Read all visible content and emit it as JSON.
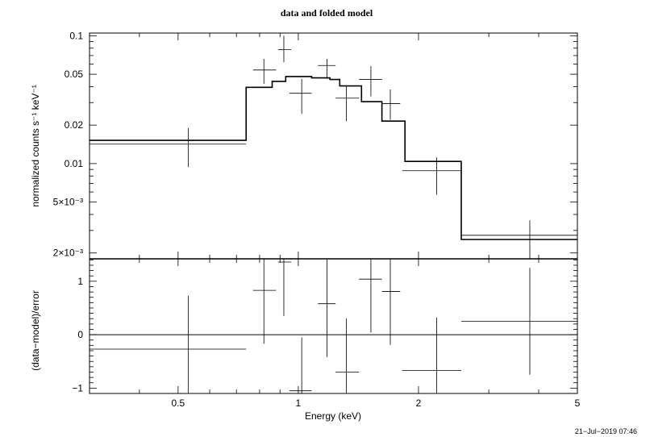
{
  "chart_data": [
    {
      "type": "line",
      "title": "data and folded model",
      "xlabel": "",
      "ylabel": "normalized counts s⁻¹ keV⁻¹",
      "x_scale": "log",
      "y_scale": "log",
      "xlim": [
        0.3,
        5
      ],
      "ylim": [
        0.0018,
        0.105
      ],
      "y_tick_labels": [
        "0.1",
        "0.05",
        "0.02",
        "0.01",
        "5×10⁻³",
        "2×10⁻³"
      ],
      "y_tick_values": [
        0.1,
        0.05,
        0.02,
        0.01,
        0.005,
        0.002
      ],
      "series": [
        {
          "kind": "data",
          "points": [
            {
              "x": 0.53,
              "xlo": 0.3,
              "xhi": 0.74,
              "y": 0.0142,
              "ylo": 0.0094,
              "yhi": 0.019
            },
            {
              "x": 0.82,
              "xlo": 0.77,
              "xhi": 0.88,
              "y": 0.054,
              "ylo": 0.042,
              "yhi": 0.066
            },
            {
              "x": 0.92,
              "xlo": 0.89,
              "xhi": 0.96,
              "y": 0.078,
              "ylo": 0.062,
              "yhi": 0.1
            },
            {
              "x": 1.02,
              "xlo": 0.95,
              "xhi": 1.08,
              "y": 0.0355,
              "ylo": 0.0245,
              "yhi": 0.046
            },
            {
              "x": 1.18,
              "xlo": 1.12,
              "xhi": 1.24,
              "y": 0.0585,
              "ylo": 0.046,
              "yhi": 0.066
            },
            {
              "x": 1.32,
              "xlo": 1.24,
              "xhi": 1.42,
              "y": 0.0325,
              "ylo": 0.0215,
              "yhi": 0.041
            },
            {
              "x": 1.52,
              "xlo": 1.42,
              "xhi": 1.62,
              "y": 0.0455,
              "ylo": 0.0335,
              "yhi": 0.058
            },
            {
              "x": 1.7,
              "xlo": 1.62,
              "xhi": 1.8,
              "y": 0.0295,
              "ylo": 0.022,
              "yhi": 0.038
            },
            {
              "x": 2.22,
              "xlo": 1.82,
              "xhi": 2.56,
              "y": 0.0088,
              "ylo": 0.0057,
              "yhi": 0.0112
            },
            {
              "x": 3.8,
              "xlo": 2.56,
              "xhi": 5.0,
              "y": 0.00275,
              "ylo": 0.0018,
              "yhi": 0.0036
            }
          ]
        },
        {
          "kind": "model",
          "steps": [
            {
              "xlo": 0.3,
              "xhi": 0.74,
              "y": 0.0152
            },
            {
              "xlo": 0.74,
              "xhi": 0.86,
              "y": 0.0395
            },
            {
              "xlo": 0.86,
              "xhi": 0.93,
              "y": 0.044
            },
            {
              "xlo": 0.93,
              "xhi": 1.08,
              "y": 0.048
            },
            {
              "xlo": 1.08,
              "xhi": 1.2,
              "y": 0.0468
            },
            {
              "xlo": 1.2,
              "xhi": 1.27,
              "y": 0.0455
            },
            {
              "xlo": 1.27,
              "xhi": 1.44,
              "y": 0.0405
            },
            {
              "xlo": 1.44,
              "xhi": 1.62,
              "y": 0.0305
            },
            {
              "xlo": 1.62,
              "xhi": 1.85,
              "y": 0.0215
            },
            {
              "xlo": 1.85,
              "xhi": 2.56,
              "y": 0.0104
            },
            {
              "xlo": 2.56,
              "xhi": 5.0,
              "y": 0.00255
            }
          ]
        }
      ]
    },
    {
      "type": "scatter",
      "title": "",
      "xlabel": "Energy (keV)",
      "ylabel": "(data−model)/error",
      "x_scale": "log",
      "y_scale": "linear",
      "xlim": [
        0.3,
        5
      ],
      "ylim": [
        -1.1,
        1.42
      ],
      "x_tick_labels": [
        "0.5",
        "1",
        "2",
        "5"
      ],
      "x_tick_values": [
        0.5,
        1,
        2,
        5
      ],
      "y_tick_labels": [
        "1",
        "0",
        "−1"
      ],
      "y_tick_values": [
        1,
        0,
        -1
      ],
      "zero_line": 0,
      "points": [
        {
          "x": 0.53,
          "xlo": 0.3,
          "xhi": 0.74,
          "y": -0.27,
          "ylo": -1.25,
          "yhi": 0.73
        },
        {
          "x": 0.82,
          "xlo": 0.77,
          "xhi": 0.88,
          "y": 0.83,
          "ylo": -0.17,
          "yhi": 1.83
        },
        {
          "x": 0.92,
          "xlo": 0.89,
          "xhi": 0.96,
          "y": 1.36,
          "ylo": 0.35,
          "yhi": 2.36
        },
        {
          "x": 1.02,
          "xlo": 0.95,
          "xhi": 1.08,
          "y": -1.05,
          "ylo": -2.05,
          "yhi": -0.05
        },
        {
          "x": 1.18,
          "xlo": 1.12,
          "xhi": 1.24,
          "y": 0.58,
          "ylo": -0.42,
          "yhi": 1.58
        },
        {
          "x": 1.32,
          "xlo": 1.24,
          "xhi": 1.42,
          "y": -0.7,
          "ylo": -1.7,
          "yhi": 0.3
        },
        {
          "x": 1.52,
          "xlo": 1.42,
          "xhi": 1.62,
          "y": 1.04,
          "ylo": 0.04,
          "yhi": 2.04
        },
        {
          "x": 1.7,
          "xlo": 1.62,
          "xhi": 1.8,
          "y": 0.81,
          "ylo": -0.19,
          "yhi": 1.81
        },
        {
          "x": 2.22,
          "xlo": 1.82,
          "xhi": 2.56,
          "y": -0.67,
          "ylo": -1.67,
          "yhi": 0.32
        },
        {
          "x": 3.8,
          "xlo": 2.56,
          "xhi": 5.0,
          "y": 0.25,
          "ylo": -0.75,
          "yhi": 1.25
        }
      ]
    }
  ],
  "timestamp": "21−Jul−2019 07:46"
}
